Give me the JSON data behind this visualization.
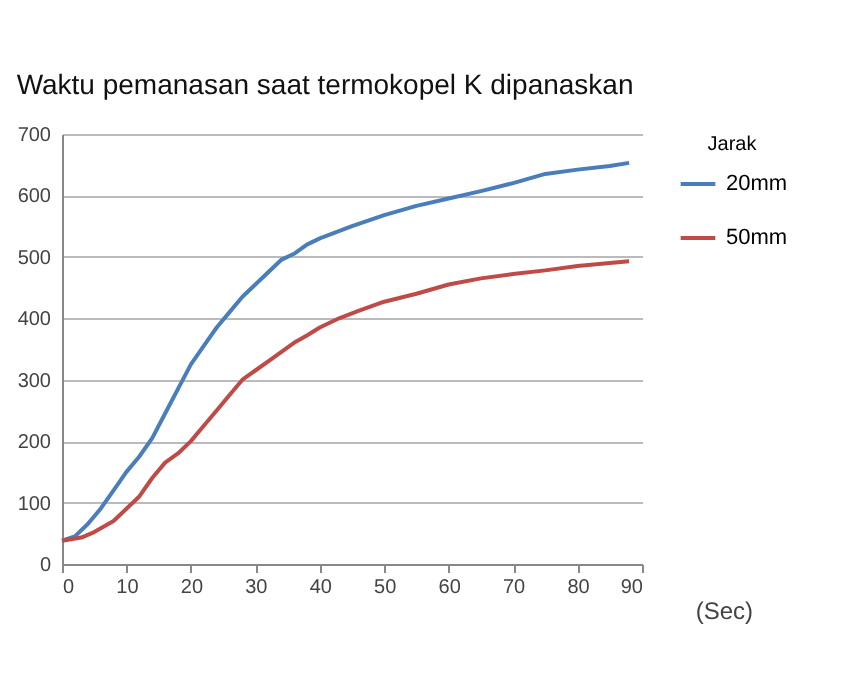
{
  "chart_data": {
    "type": "line",
    "title": "Waktu pemanasan saat termokopel K dipanaskan",
    "xlabel": "(Sec)",
    "legend_title": "Jarak",
    "legend": "right",
    "grid": "y",
    "marker": "none",
    "line_style": "solid",
    "xlim": [
      0,
      90
    ],
    "xticks": [
      0,
      10,
      20,
      30,
      40,
      50,
      60,
      70,
      80,
      90
    ],
    "ylim": [
      0,
      700
    ],
    "yticks": [
      0,
      100,
      200,
      300,
      400,
      500,
      600,
      700
    ],
    "series": [
      {
        "name": "20mm",
        "color": "#4a7ebb",
        "x": [
          0,
          2,
          4,
          6,
          8,
          10,
          12,
          14,
          16,
          18,
          20,
          22,
          24,
          26,
          28,
          30,
          32,
          34,
          36,
          38,
          40,
          45,
          50,
          55,
          60,
          65,
          70,
          75,
          80,
          85,
          88
        ],
        "values": [
          38,
          45,
          65,
          90,
          120,
          150,
          175,
          205,
          245,
          285,
          325,
          355,
          385,
          410,
          435,
          455,
          475,
          495,
          505,
          520,
          530,
          550,
          568,
          583,
          595,
          607,
          620,
          635,
          642,
          648,
          653
        ]
      },
      {
        "name": "50mm",
        "color": "#be4b48",
        "x": [
          0,
          3,
          5,
          8,
          10,
          12,
          14,
          16,
          18,
          20,
          22,
          24,
          26,
          28,
          30,
          32,
          34,
          36,
          38,
          40,
          43,
          46,
          50,
          55,
          60,
          65,
          70,
          75,
          80,
          85,
          88
        ],
        "values": [
          38,
          43,
          52,
          70,
          90,
          110,
          140,
          165,
          180,
          200,
          225,
          250,
          275,
          300,
          315,
          330,
          345,
          360,
          372,
          385,
          400,
          412,
          427,
          440,
          455,
          465,
          472,
          478,
          485,
          490,
          493
        ]
      }
    ]
  }
}
